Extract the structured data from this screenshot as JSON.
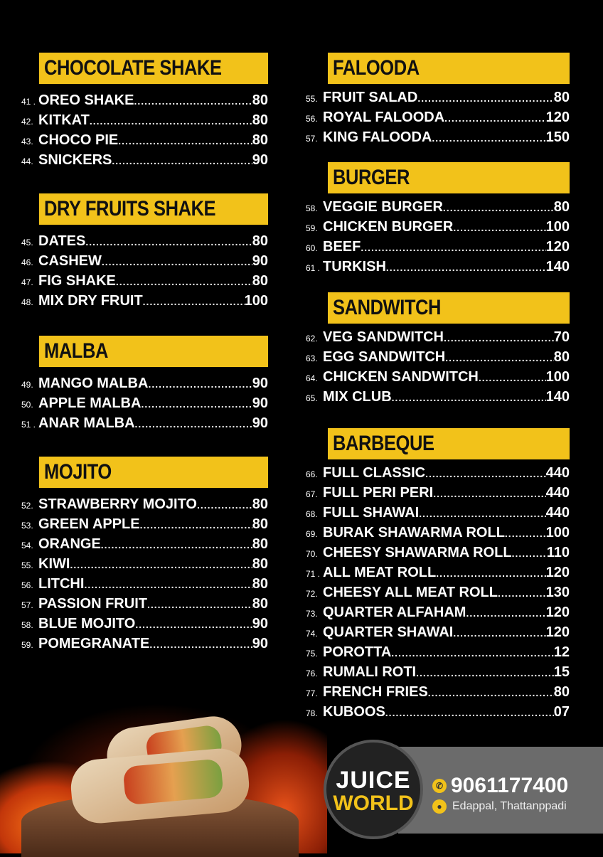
{
  "left": [
    {
      "title": "CHOCOLATE SHAKE",
      "items": [
        [
          "41 .",
          "OREO SHAKE",
          "80"
        ],
        [
          "42.",
          "KITKAT",
          "80"
        ],
        [
          "43.",
          "CHOCO PIE",
          "80"
        ],
        [
          "44.",
          "SNICKERS",
          "90"
        ]
      ]
    },
    {
      "title": "DRY FRUITS SHAKE",
      "items": [
        [
          "45.",
          "DATES",
          "80"
        ],
        [
          "46.",
          "CASHEW",
          "90"
        ],
        [
          "47.",
          "FIG SHAKE",
          "80"
        ],
        [
          "48.",
          "MIX DRY FRUIT",
          "100"
        ]
      ]
    },
    {
      "title": "MALBA",
      "items": [
        [
          "49.",
          "MANGO MALBA",
          "90"
        ],
        [
          "50.",
          "APPLE MALBA",
          "90"
        ],
        [
          "51 .",
          "ANAR MALBA",
          "90"
        ]
      ]
    },
    {
      "title": "MOJITO",
      "items": [
        [
          "52.",
          "STRAWBERRY MOJITO",
          "80"
        ],
        [
          "53.",
          "GREEN APPLE",
          "80"
        ],
        [
          "54.",
          "ORANGE",
          "80"
        ],
        [
          "55.",
          "KIWI",
          "80"
        ],
        [
          "56.",
          "LITCHI",
          "80"
        ],
        [
          "57.",
          "PASSION FRUIT",
          "80"
        ],
        [
          "58.",
          "BLUE MOJITO",
          "90"
        ],
        [
          "59.",
          "POMEGRANATE",
          "90"
        ]
      ]
    }
  ],
  "right": [
    {
      "title": "FALOODA",
      "items": [
        [
          "55.",
          "FRUIT SALAD",
          "80"
        ],
        [
          "56.",
          "ROYAL FALOODA",
          "120"
        ],
        [
          "57.",
          "KING FALOODA",
          "150"
        ]
      ]
    },
    {
      "title": "BURGER",
      "items": [
        [
          "58.",
          "VEGGIE BURGER",
          "80"
        ],
        [
          "59.",
          "CHICKEN BURGER",
          "100"
        ],
        [
          "60.",
          "BEEF",
          "120"
        ],
        [
          "61 .",
          "TURKISH",
          "140"
        ]
      ]
    },
    {
      "title": "SANDWITCH",
      "items": [
        [
          "62.",
          "VEG SANDWITCH",
          "70"
        ],
        [
          "63.",
          "EGG SANDWITCH",
          "80"
        ],
        [
          "64.",
          "CHICKEN SANDWITCH",
          "100"
        ],
        [
          "65.",
          "MIX CLUB",
          "140"
        ]
      ]
    },
    {
      "title": "BARBEQUE",
      "items": [
        [
          "66.",
          "FULL CLASSIC",
          "440"
        ],
        [
          "67.",
          "FULL PERI PERI",
          "440"
        ],
        [
          "68.",
          "FULL SHAWAI",
          "440"
        ],
        [
          "69.",
          "BURAK SHAWARMA ROLL",
          "100"
        ],
        [
          "70.",
          "CHEESY SHAWARMA ROLL",
          "110"
        ],
        [
          "71 .",
          "ALL MEAT ROLL",
          "120"
        ],
        [
          "72.",
          "CHEESY ALL MEAT ROLL",
          "130"
        ],
        [
          "73.",
          "QUARTER ALFAHAM",
          "120"
        ],
        [
          "74.",
          "QUARTER SHAWAI",
          "120"
        ],
        [
          "75.",
          "POROTTA",
          "12"
        ],
        [
          "76.",
          "RUMALI ROTI",
          "15"
        ],
        [
          "77.",
          "FRENCH FRIES",
          "80"
        ],
        [
          "78.",
          "KUBOOS",
          "07"
        ]
      ]
    }
  ],
  "footer": {
    "logo_line1": "JUICE",
    "logo_line2": "WORLD",
    "phone": "9061177400",
    "address": "Edappal, Thattanppadi",
    "phone_icon": "phone-icon",
    "location_icon": "location-pin-icon"
  },
  "colors": {
    "accent": "#f2c21a",
    "background": "#000000",
    "band": "#6b6b6b"
  }
}
